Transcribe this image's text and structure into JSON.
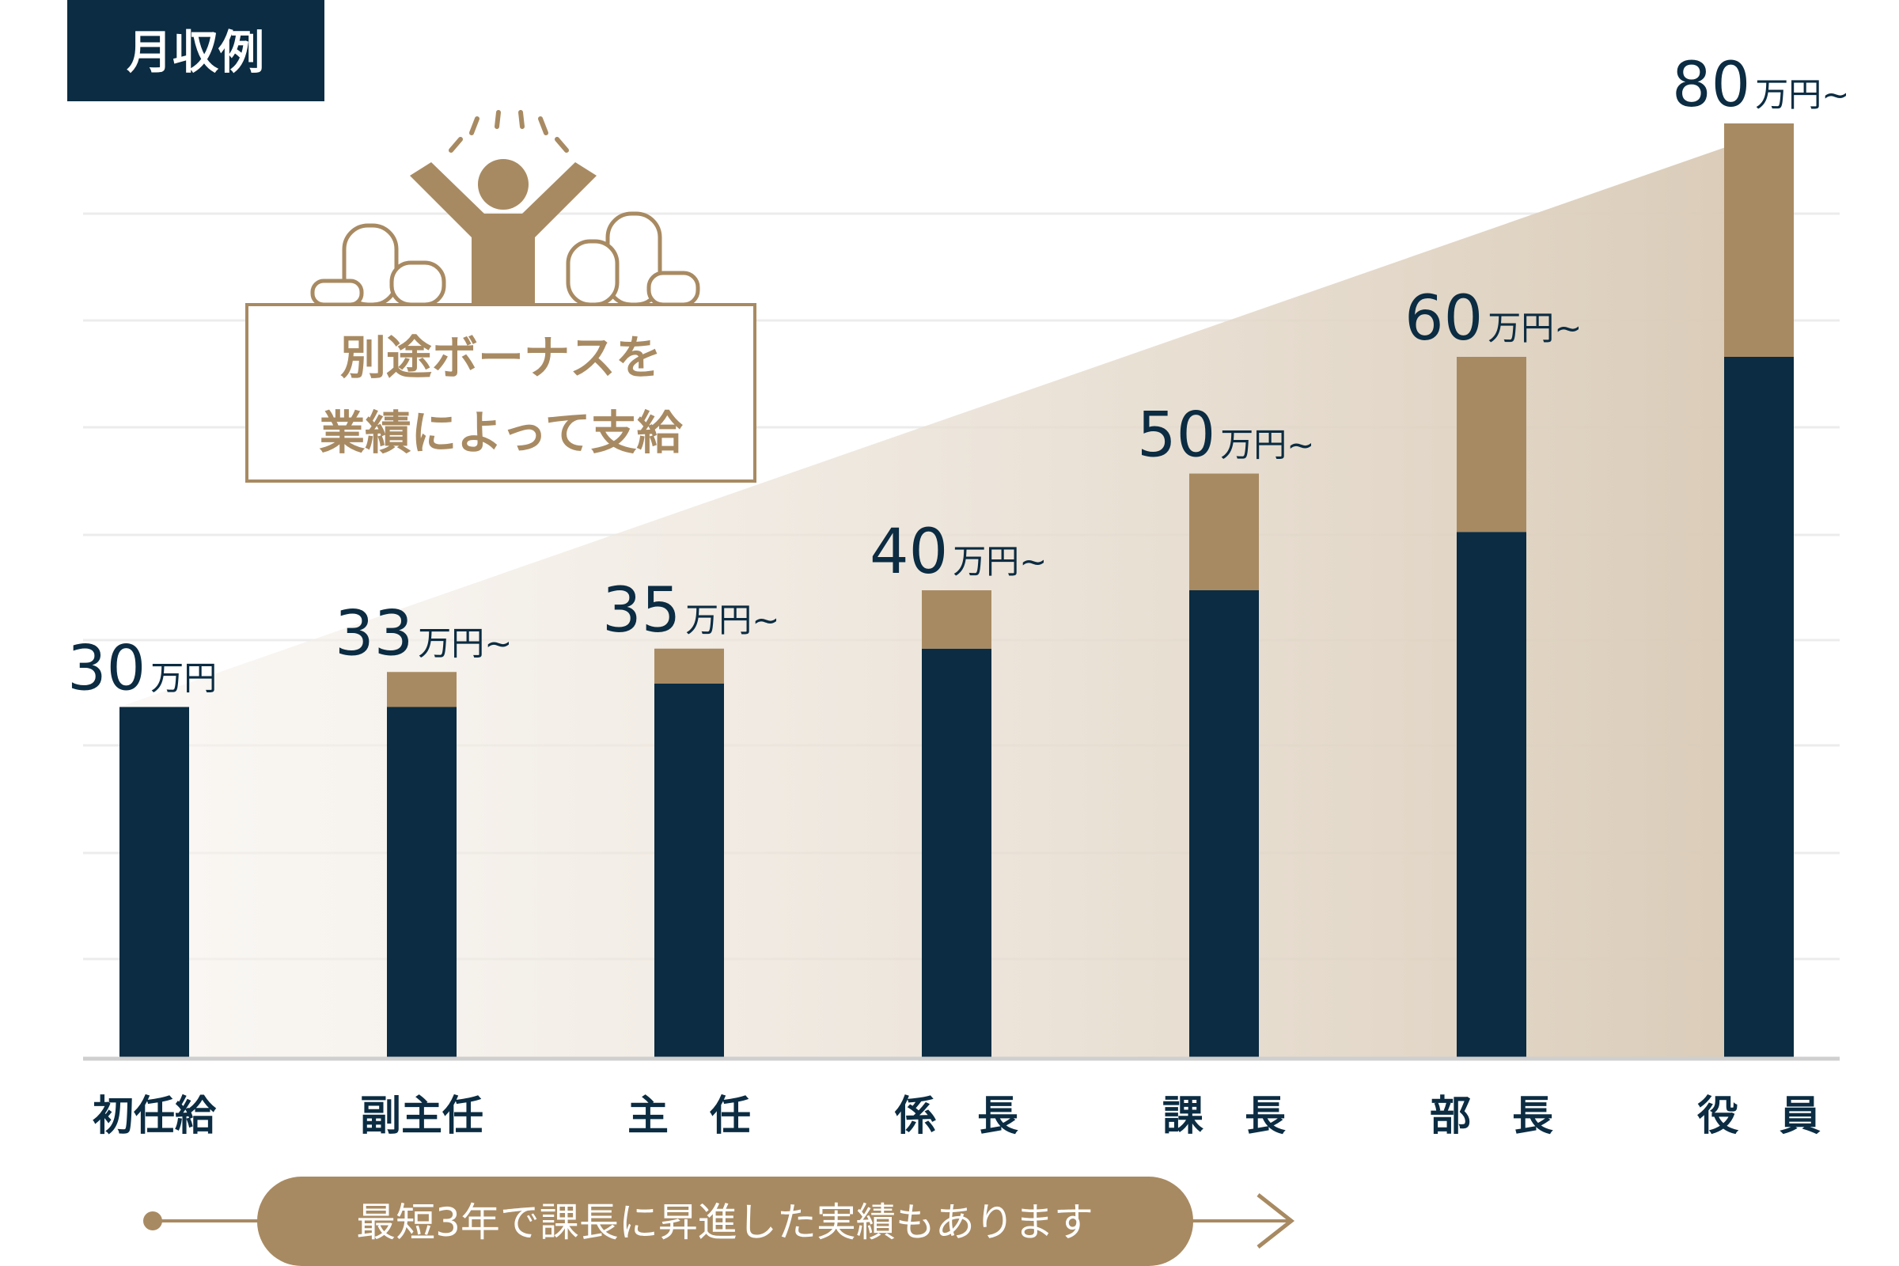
{
  "badge": "月収例",
  "bonus_note": [
    "別途ボーナスを",
    "業績によって支給"
  ],
  "footer_note": "最短3年で課長に昇進した実績もあります",
  "chart_data": {
    "type": "bar",
    "stacked": true,
    "categories": [
      "初任給",
      "副主任",
      "主　任",
      "係　長",
      "課　長",
      "部　長",
      "役　員"
    ],
    "series": [
      {
        "color": "#0b2c42",
        "values": [
          30,
          30,
          32,
          35,
          40,
          45,
          60
        ]
      },
      {
        "color": "#a88a62",
        "values": [
          0,
          3,
          3,
          5,
          10,
          15,
          20
        ]
      }
    ],
    "total_labels": [
      "30",
      "33",
      "35",
      "40",
      "50",
      "60",
      "80"
    ],
    "unit_labels": [
      "万円",
      "万円~",
      "万円~",
      "万円~",
      "万円~",
      "万円~",
      "万円~"
    ],
    "ylim": [
      0,
      80
    ]
  }
}
